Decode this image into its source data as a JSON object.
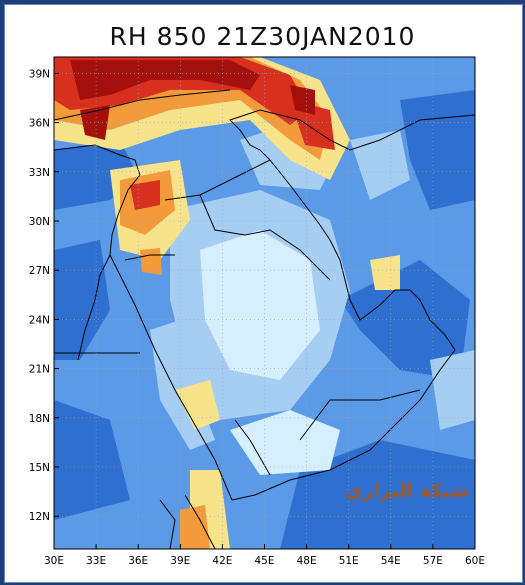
{
  "map": {
    "title": "RH 850 21Z30JAN2010",
    "watermark": "شبكة البراري",
    "lon_ticks": [
      "30E",
      "33E",
      "36E",
      "39E",
      "42E",
      "45E",
      "48E",
      "51E",
      "54E",
      "57E",
      "60E"
    ],
    "lat_ticks": [
      "39N",
      "36N",
      "33N",
      "30N",
      "27N",
      "24N",
      "21N",
      "18N",
      "15N",
      "12N"
    ],
    "lon_range": [
      30,
      60
    ],
    "lat_range": [
      10,
      40
    ],
    "colors": {
      "frame_bg": "#1f3f7a",
      "field_blue_dark": "#2e6fd0",
      "field_blue_mid": "#5a9ae6",
      "field_blue_light": "#a6cdf2",
      "field_cyan_pale": "#d6efff",
      "field_yellow": "#f7e48a",
      "field_orange": "#f39a3a",
      "field_red": "#d8301e",
      "field_dark_red": "#a4100c",
      "coastline": "#000000"
    }
  }
}
